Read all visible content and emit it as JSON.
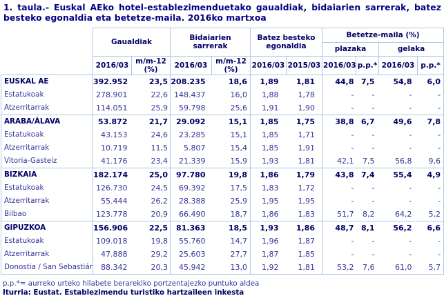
{
  "title": "1. taula.- Euskal AEko hotel-establezimenduetako gaualdiak, bidaiarien sarrerak, batez besteko egonaldia eta betetze-maila. 2016ko martxoa",
  "table": {
    "header": {
      "groups": {
        "gaualdiak": "Gaualdiak",
        "sarrerak": "Bidaiarien sarrerak",
        "egonaldia": "Batez besteko egonaldia",
        "betetze": "Betetze-maila (%)",
        "plazaka": "plazaka",
        "gelaka": "gelaka"
      },
      "cols": [
        "2016/03",
        "m/m-12 (%)",
        "2016/03",
        "m/m-12 (%)",
        "2016/03",
        "2015/03",
        "2016/03",
        "p.p.*",
        "2016/03",
        "p.p.*"
      ]
    },
    "rows": [
      {
        "label": "EUSKAL AE",
        "bold": true,
        "group_start": false,
        "values": [
          "392.952",
          "23,5",
          "208.235",
          "18,6",
          "1,89",
          "1,81",
          "44,8",
          "7,5",
          "54,8",
          "6,0"
        ]
      },
      {
        "label": "Estatukoak",
        "bold": false,
        "group_start": false,
        "values": [
          "278.901",
          "22,6",
          "148.437",
          "16,0",
          "1,88",
          "1,78",
          "-",
          "-",
          "-",
          "-"
        ]
      },
      {
        "label": "Atzerritarrak",
        "bold": false,
        "group_start": false,
        "values": [
          "114.051",
          "25,9",
          "59.798",
          "25,6",
          "1,91",
          "1,90",
          "-",
          "-",
          "-",
          "-"
        ]
      },
      {
        "label": "ARABA/ÁLAVA",
        "bold": true,
        "group_start": true,
        "values": [
          "53.872",
          "21,7",
          "29.092",
          "15,1",
          "1,85",
          "1,75",
          "38,8",
          "6,7",
          "49,6",
          "7,8"
        ]
      },
      {
        "label": "Estatukoak",
        "bold": false,
        "group_start": false,
        "values": [
          "43.153",
          "24,6",
          "23.285",
          "15,1",
          "1,85",
          "1,71",
          "-",
          "-",
          "-",
          "-"
        ]
      },
      {
        "label": "Atzerritarrak",
        "bold": false,
        "group_start": false,
        "values": [
          "10.719",
          "11,5",
          "5.807",
          "15,4",
          "1,85",
          "1,91",
          "-",
          "-",
          "-",
          "-"
        ]
      },
      {
        "label": "Vitoria-Gasteiz",
        "bold": false,
        "group_start": false,
        "values": [
          "41.176",
          "23,4",
          "21.339",
          "15,9",
          "1,93",
          "1,81",
          "42,1",
          "7,5",
          "56,8",
          "9,6"
        ]
      },
      {
        "label": "BIZKAIA",
        "bold": true,
        "group_start": true,
        "values": [
          "182.174",
          "25,0",
          "97.780",
          "19,8",
          "1,86",
          "1,79",
          "43,8",
          "7,4",
          "55,4",
          "4,9"
        ]
      },
      {
        "label": "Estatukoak",
        "bold": false,
        "group_start": false,
        "values": [
          "126.730",
          "24,5",
          "69.392",
          "17,5",
          "1,83",
          "1,72",
          "-",
          "-",
          "-",
          "-"
        ]
      },
      {
        "label": "Atzerritarrak",
        "bold": false,
        "group_start": false,
        "values": [
          "55.444",
          "26,2",
          "28.388",
          "25,9",
          "1,95",
          "1,95",
          "-",
          "-",
          "-",
          "-"
        ]
      },
      {
        "label": "Bilbao",
        "bold": false,
        "group_start": false,
        "values": [
          "123.778",
          "20,9",
          "66.490",
          "18,7",
          "1,86",
          "1,83",
          "51,7",
          "8,2",
          "64,2",
          "5,2"
        ]
      },
      {
        "label": "GIPUZKOA",
        "bold": true,
        "group_start": true,
        "values": [
          "156.906",
          "22,5",
          "81.363",
          "18,5",
          "1,93",
          "1,86",
          "48,7",
          "8,1",
          "56,2",
          "6,6"
        ]
      },
      {
        "label": "Estatukoak",
        "bold": false,
        "group_start": false,
        "values": [
          "109.018",
          "19,8",
          "55.760",
          "14,7",
          "1,96",
          "1,87",
          "-",
          "-",
          "-",
          "-"
        ]
      },
      {
        "label": "Atzerritarrak",
        "bold": false,
        "group_start": false,
        "values": [
          "47.888",
          "29,2",
          "25.603",
          "27,7",
          "1,87",
          "1,85",
          "-",
          "-",
          "-",
          "-"
        ]
      },
      {
        "label": "Donostia / San Sebastián",
        "bold": false,
        "group_start": false,
        "values": [
          "88.342",
          "20,3",
          "45.942",
          "13,0",
          "1,92",
          "1,81",
          "53,2",
          "7,6",
          "61,0",
          "5,7"
        ]
      }
    ]
  },
  "footnotes": {
    "pp_note": "p.p.*= aurreko urteko hilabete berarekiko portzentajezko puntuko aldea",
    "source": "Iturria: Eustat. Establezimendu turistiko hartzaileen inkesta"
  }
}
